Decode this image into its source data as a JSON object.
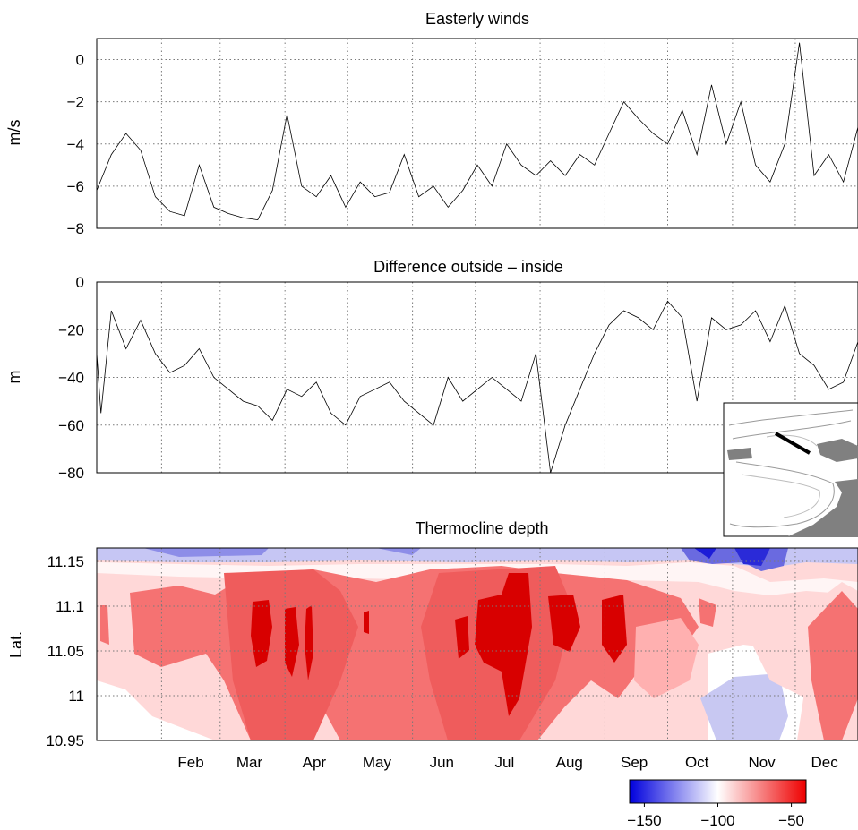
{
  "chart_data": [
    {
      "type": "line",
      "title": "Easterly winds",
      "ylabel": "m/s",
      "ylim": [
        -8,
        1
      ],
      "yticks": [
        "0",
        "−2",
        "−4",
        "−6",
        "−8"
      ],
      "x_unit": "day of year",
      "xlim": [
        1,
        365
      ],
      "grid": true,
      "x": [
        1,
        8,
        15,
        22,
        29,
        36,
        43,
        50,
        57,
        64,
        71,
        78,
        85,
        92,
        99,
        106,
        113,
        120,
        127,
        134,
        141,
        148,
        155,
        162,
        169,
        176,
        183,
        190,
        197,
        204,
        211,
        218,
        225,
        232,
        239,
        246,
        253,
        260,
        267,
        274,
        281,
        288,
        295,
        302,
        309,
        316,
        323,
        330,
        337,
        344,
        351,
        358,
        365
      ],
      "values": [
        -6.2,
        -4.5,
        -3.5,
        -4.3,
        -6.5,
        -7.2,
        -7.4,
        -5.0,
        -7.0,
        -7.3,
        -7.5,
        -7.6,
        -6.2,
        -2.6,
        -6.0,
        -6.5,
        -5.5,
        -7.0,
        -5.8,
        -6.5,
        -6.3,
        -4.5,
        -6.5,
        -6.0,
        -7.0,
        -6.2,
        -5.0,
        -6.0,
        -4.0,
        -5.0,
        -5.5,
        -4.8,
        -5.5,
        -4.5,
        -5.0,
        -3.5,
        -2.0,
        -2.8,
        -3.5,
        -4.0,
        -2.4,
        -4.5,
        -1.2,
        -4.0,
        -2.0,
        -5.0,
        -5.8,
        -4.0,
        0.8,
        -5.5,
        -4.5,
        -5.8,
        -3.2
      ]
    },
    {
      "type": "line",
      "title": "Difference outside – inside",
      "ylabel": "m",
      "ylim": [
        -80,
        0
      ],
      "yticks": [
        "0",
        "−20",
        "−40",
        "−60",
        "−80"
      ],
      "x_unit": "day of year",
      "xlim": [
        1,
        365
      ],
      "grid": true,
      "x": [
        1,
        3,
        8,
        15,
        22,
        29,
        36,
        43,
        50,
        57,
        64,
        71,
        78,
        85,
        92,
        99,
        106,
        113,
        120,
        127,
        134,
        141,
        148,
        155,
        162,
        169,
        176,
        183,
        190,
        197,
        204,
        211,
        218,
        225,
        232,
        239,
        246,
        253,
        260,
        267,
        274,
        281,
        288,
        295,
        302,
        309,
        316,
        323,
        330,
        337,
        344,
        351,
        358,
        365
      ],
      "values": [
        -30,
        -55,
        -12,
        -28,
        -16,
        -30,
        -38,
        -35,
        -28,
        -40,
        -45,
        -50,
        -52,
        -58,
        -45,
        -48,
        -42,
        -55,
        -60,
        -48,
        -45,
        -42,
        -50,
        -55,
        -60,
        -40,
        -50,
        -45,
        -40,
        -45,
        -50,
        -30,
        -80,
        -60,
        -45,
        -30,
        -18,
        -12,
        -15,
        -20,
        -8,
        -15,
        -50,
        -15,
        -20,
        -18,
        -12,
        -25,
        -10,
        -30,
        -35,
        -45,
        -42,
        -25
      ]
    },
    {
      "type": "heatmap",
      "title": "Thermocline depth",
      "ylabel": "Lat.",
      "ylim": [
        10.95,
        11.165
      ],
      "yticks": [
        "11.15",
        "11.1",
        "11.05",
        "11",
        "10.95"
      ],
      "xticks": [
        "Feb",
        "Mar",
        "Apr",
        "May",
        "Jun",
        "Jul",
        "Aug",
        "Sep",
        "Oct",
        "Nov",
        "Dec"
      ],
      "colorbar": {
        "ticks": [
          "−150",
          "−100",
          "−50"
        ],
        "range": [
          -160,
          -40
        ],
        "colors": [
          "#0000dd",
          "#ffffff",
          "#ee0000"
        ]
      }
    }
  ],
  "inset": {
    "description": "location map with section line"
  }
}
